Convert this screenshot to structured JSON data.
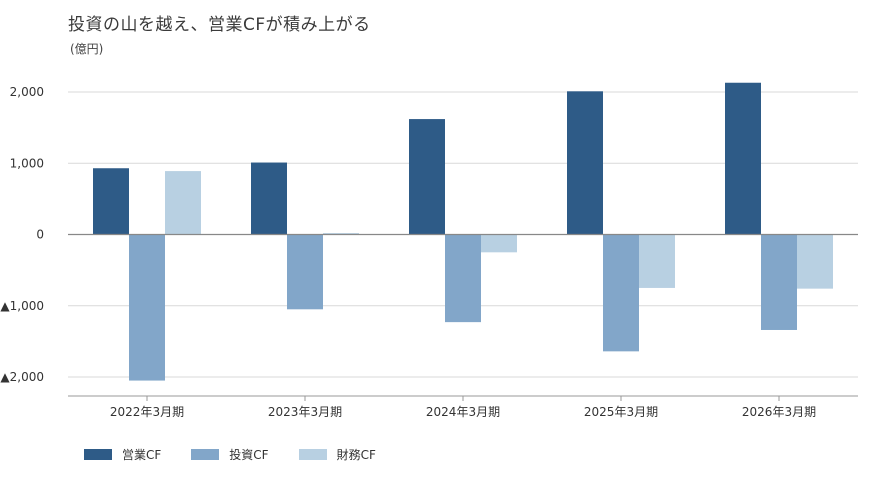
{
  "title": "投資の山を越え、営業CFが積み上がる",
  "unit_label": "(億円)",
  "colors": {
    "operating": "#2e5b87",
    "investing": "#82a6c9",
    "financing": "#b8d0e2",
    "grid": "#d9d9d9",
    "axis": "#888888"
  },
  "chart_data": {
    "type": "bar",
    "categories": [
      "2022年3月期",
      "2023年3月期",
      "2024年3月期",
      "2025年3月期",
      "2026年3月期"
    ],
    "series": [
      {
        "name": "営業CF",
        "color": "#2e5b87",
        "values": [
          930,
          1010,
          1620,
          2010,
          2130
        ]
      },
      {
        "name": "投資CF",
        "color": "#82a6c9",
        "values": [
          -2050,
          -1050,
          -1230,
          -1640,
          -1340
        ]
      },
      {
        "name": "財務CF",
        "color": "#b8d0e2",
        "values": [
          890,
          20,
          -250,
          -750,
          -760
        ]
      }
    ],
    "ylim": [
      -2200,
      2300
    ],
    "yticks": [
      2000,
      1000,
      0,
      -1000,
      -2000
    ],
    "ytick_labels": [
      "2,000",
      "1,000",
      "0",
      "▲1,000",
      "▲2,000"
    ],
    "grid": true,
    "legend_position": "bottom-left"
  }
}
